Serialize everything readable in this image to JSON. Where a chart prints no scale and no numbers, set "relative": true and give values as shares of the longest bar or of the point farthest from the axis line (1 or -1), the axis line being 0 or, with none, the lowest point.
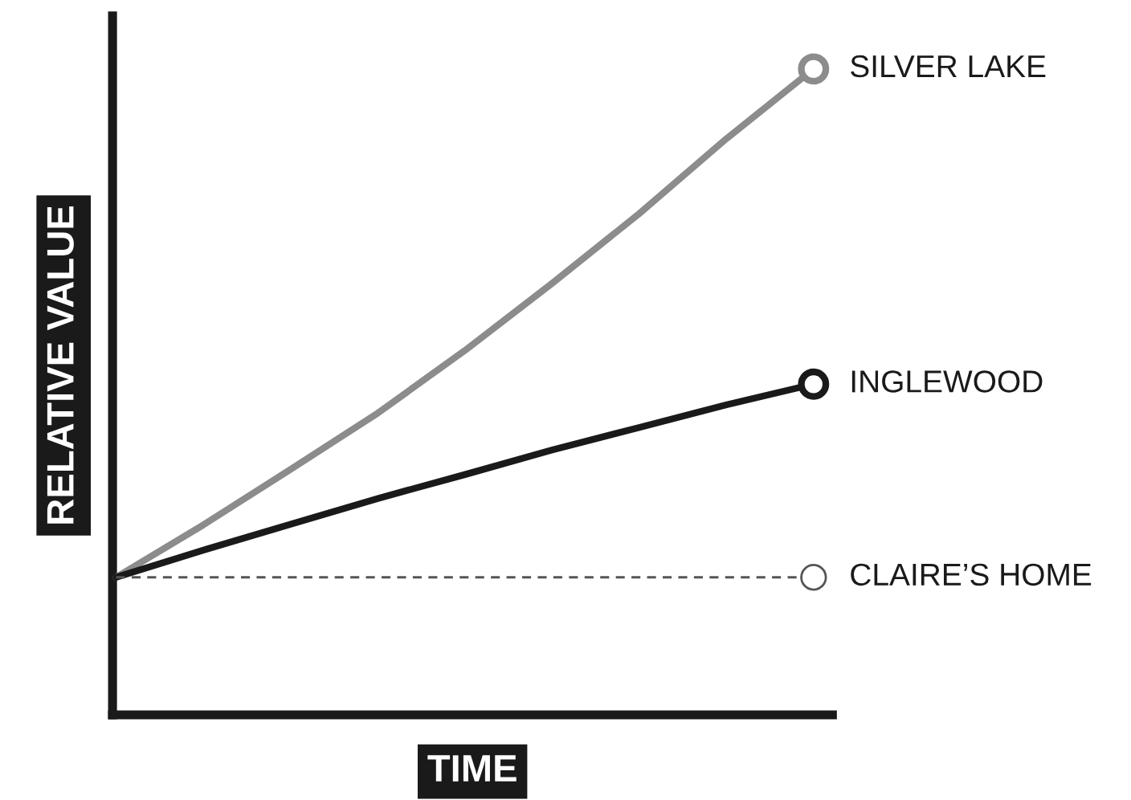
{
  "chart_data": {
    "type": "line",
    "relative": true,
    "xlabel": "TIME",
    "ylabel": "RELATIVE VALUE",
    "categories": [
      null,
      null,
      null,
      null,
      null,
      null,
      null,
      null,
      null
    ],
    "grid": false,
    "legend": false,
    "series": [
      {
        "name": "SILVER LAKE",
        "color": "#8c8c8c",
        "values": [
          0.213,
          0.294,
          0.38,
          0.467,
          0.564,
          0.668,
          0.776,
          0.892,
          1.0
        ]
      },
      {
        "name": "INGLEWOOD",
        "color": "#1a1a1a",
        "values": [
          0.213,
          0.255,
          0.295,
          0.335,
          0.372,
          0.41,
          0.445,
          0.48,
          0.512
        ]
      },
      {
        "name": "CLAIRE’S HOME",
        "color": "#555555",
        "line_style": "dashed",
        "values": [
          0.213,
          0.213,
          0.213,
          0.213,
          0.213,
          0.213,
          0.213,
          0.213,
          0.213
        ]
      }
    ]
  }
}
